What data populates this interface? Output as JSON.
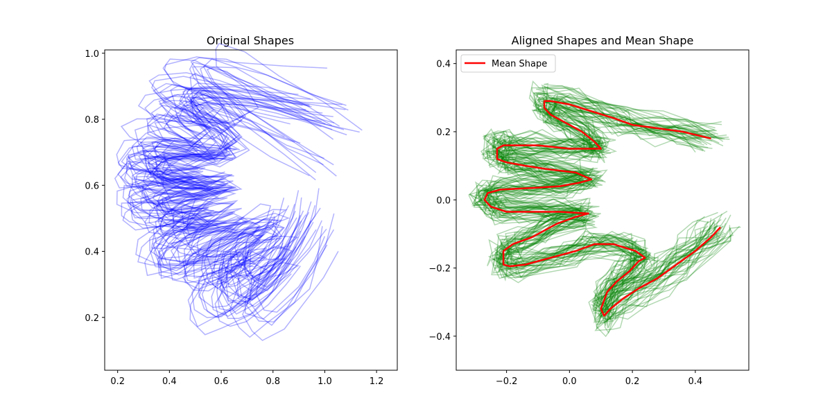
{
  "colors": {
    "original": "#0000ff",
    "aligned": "#008000",
    "mean": "#ff0000"
  },
  "chart_data": [
    {
      "type": "line",
      "title": "Original Shapes",
      "xlim": [
        0.15,
        1.28
      ],
      "ylim": [
        1.01,
        0.04
      ],
      "y_inverted": true,
      "xticks": [
        0.2,
        0.4,
        0.6,
        0.8,
        1.0,
        1.2
      ],
      "xtick_labels": [
        "0.2",
        "0.4",
        "0.6",
        "0.8",
        "1.0",
        "1.2"
      ],
      "yticks": [
        0.2,
        0.4,
        0.6,
        0.8,
        1.0
      ],
      "ytick_labels": [
        "0.2",
        "0.4",
        "0.6",
        "0.8",
        "1.0"
      ],
      "shape_count": 40,
      "representative_shape": {
        "x": [
          0.92,
          0.87,
          0.81,
          0.73,
          0.67,
          0.62,
          0.6,
          0.63,
          0.69,
          0.74,
          0.78,
          0.73,
          0.64,
          0.54,
          0.45,
          0.39,
          0.38,
          0.42,
          0.51,
          0.6,
          0.53,
          0.43,
          0.33,
          0.29,
          0.29,
          0.34,
          0.45,
          0.58,
          0.49,
          0.38,
          0.3,
          0.28,
          0.33,
          0.42,
          0.55,
          0.62,
          0.56,
          0.46,
          0.43,
          0.46,
          0.55,
          0.68,
          0.85,
          1.0
        ],
        "y": [
          0.48,
          0.4,
          0.33,
          0.27,
          0.24,
          0.26,
          0.31,
          0.37,
          0.4,
          0.42,
          0.44,
          0.45,
          0.43,
          0.4,
          0.38,
          0.39,
          0.43,
          0.47,
          0.51,
          0.53,
          0.54,
          0.54,
          0.55,
          0.58,
          0.61,
          0.62,
          0.62,
          0.64,
          0.65,
          0.66,
          0.68,
          0.71,
          0.74,
          0.74,
          0.73,
          0.76,
          0.81,
          0.86,
          0.9,
          0.92,
          0.91,
          0.88,
          0.83,
          0.79
        ]
      },
      "color": "#0000ff"
    },
    {
      "type": "line",
      "title": "Aligned Shapes and Mean Shape",
      "xlim": [
        -0.36,
        0.57
      ],
      "ylim": [
        0.44,
        -0.5
      ],
      "y_inverted": true,
      "xticks": [
        -0.2,
        0.0,
        0.2,
        0.4
      ],
      "xtick_labels": [
        "−0.2",
        "0.0",
        "0.2",
        "0.4"
      ],
      "yticks": [
        -0.4,
        -0.2,
        0.0,
        0.2,
        0.4
      ],
      "ytick_labels": [
        "−0.4",
        "−0.2",
        "0.0",
        "0.2",
        "0.4"
      ],
      "shape_count": 40,
      "legend": {
        "location": "upper left",
        "entries": [
          "Mean Shape"
        ]
      },
      "series": [
        {
          "name": "Mean Shape",
          "color": "#ff0000",
          "x": [
            0.48,
            0.45,
            0.4,
            0.34,
            0.28,
            0.22,
            0.17,
            0.13,
            0.11,
            0.1,
            0.12,
            0.15,
            0.19,
            0.22,
            0.24,
            0.21,
            0.14,
            0.08,
            0.02,
            -0.06,
            -0.14,
            -0.19,
            -0.21,
            -0.21,
            -0.18,
            -0.12,
            -0.04,
            0.02,
            0.06,
            -0.03,
            -0.12,
            -0.2,
            -0.25,
            -0.27,
            -0.26,
            -0.22,
            -0.12,
            -0.03,
            0.03,
            0.07,
            0.02,
            -0.07,
            -0.14,
            -0.2,
            -0.23,
            -0.23,
            -0.21,
            -0.18,
            -0.1,
            0.0,
            0.07,
            0.1,
            0.08,
            0.04,
            -0.02,
            -0.06,
            -0.08,
            -0.08,
            -0.06,
            0.0,
            0.07,
            0.14,
            0.2,
            0.28,
            0.36,
            0.45
          ],
          "y": [
            -0.08,
            -0.11,
            -0.15,
            -0.19,
            -0.23,
            -0.26,
            -0.29,
            -0.32,
            -0.34,
            -0.32,
            -0.27,
            -0.24,
            -0.21,
            -0.18,
            -0.17,
            -0.15,
            -0.13,
            -0.13,
            -0.15,
            -0.17,
            -0.19,
            -0.195,
            -0.19,
            -0.15,
            -0.13,
            -0.11,
            -0.07,
            -0.05,
            -0.04,
            -0.035,
            -0.035,
            -0.035,
            -0.02,
            0.0,
            0.02,
            0.03,
            0.035,
            0.04,
            0.05,
            0.06,
            0.08,
            0.09,
            0.1,
            0.11,
            0.12,
            0.15,
            0.16,
            0.16,
            0.16,
            0.15,
            0.15,
            0.15,
            0.17,
            0.2,
            0.23,
            0.25,
            0.27,
            0.29,
            0.29,
            0.28,
            0.26,
            0.24,
            0.22,
            0.21,
            0.2,
            0.18
          ]
        }
      ],
      "aligned_color": "#008000"
    }
  ]
}
